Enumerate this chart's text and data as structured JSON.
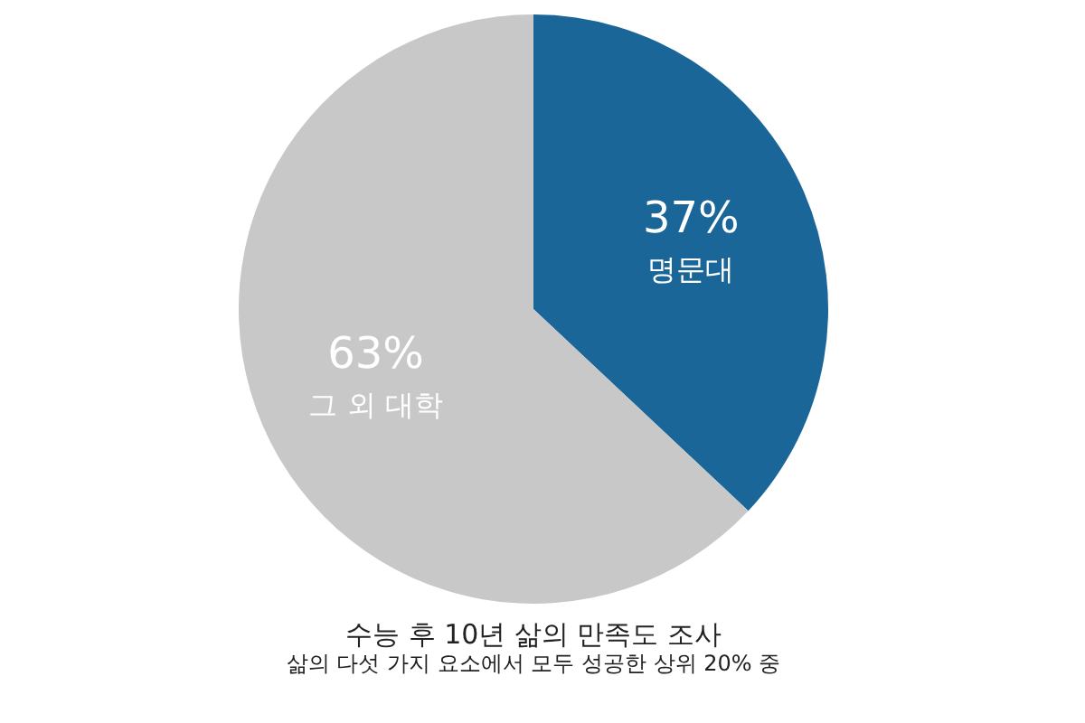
{
  "chart_data": {
    "type": "pie",
    "title": "수능 후 10년 삶의 만족도 조사",
    "subtitle": "삶의 다섯 가지 요소에서 모두 성공한 상위 20% 중",
    "categories": [
      "명문대",
      "그 외 대학"
    ],
    "values": [
      37,
      63
    ],
    "colors": [
      "#1a6698",
      "#c8c8c8"
    ],
    "value_labels": [
      "37%",
      "63%"
    ],
    "legend": false
  }
}
